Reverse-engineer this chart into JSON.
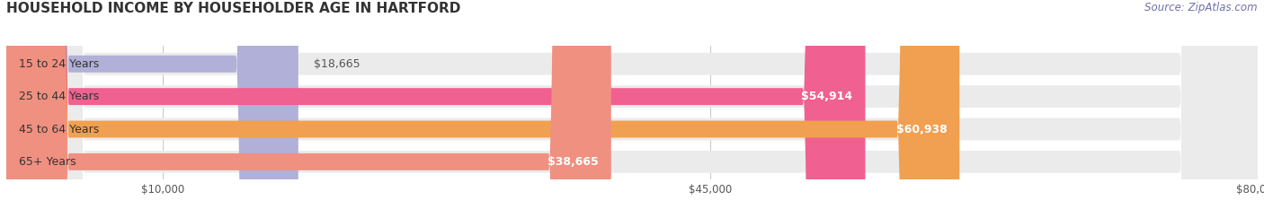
{
  "title": "HOUSEHOLD INCOME BY HOUSEHOLDER AGE IN HARTFORD",
  "source": "Source: ZipAtlas.com",
  "categories": [
    "15 to 24 Years",
    "25 to 44 Years",
    "45 to 64 Years",
    "65+ Years"
  ],
  "values": [
    18665,
    54914,
    60938,
    38665
  ],
  "bar_colors": [
    "#b0b0d8",
    "#f06090",
    "#f0a050",
    "#f09080"
  ],
  "bar_bg_color": "#ebebeb",
  "background_color": "#ffffff",
  "x_ticks": [
    10000,
    45000,
    80000
  ],
  "x_tick_labels": [
    "$10,000",
    "$45,000",
    "$80,000"
  ],
  "x_max": 80000,
  "value_labels": [
    "$18,665",
    "$54,914",
    "$60,938",
    "$38,665"
  ],
  "title_fontsize": 11,
  "label_fontsize": 9,
  "tick_fontsize": 8.5,
  "source_fontsize": 8.5
}
